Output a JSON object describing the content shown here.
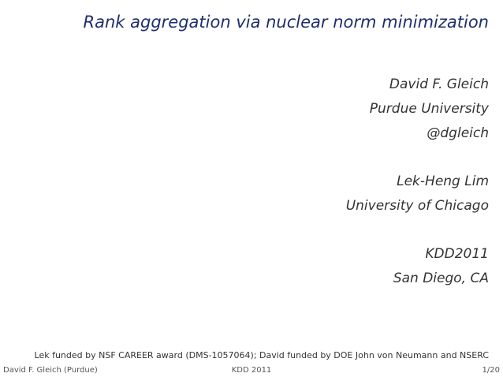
{
  "title": "Rank aggregation via nuclear norm minimization",
  "authors": [
    {
      "lines": [
        "David F. Gleich",
        "Purdue University",
        "@dgleich"
      ]
    },
    {
      "lines": [
        "Lek-Heng Lim",
        "University of Chicago"
      ]
    },
    {
      "lines": [
        "KDD2011",
        "San Diego, CA"
      ]
    }
  ],
  "funding": "Lek funded by NSF CAREER award (DMS-1057064);  David funded by DOE John von Neumann and NSERC",
  "footer": {
    "left": "David F. Gleich (Purdue)",
    "center": "KDD 2011",
    "right": "1/20"
  }
}
